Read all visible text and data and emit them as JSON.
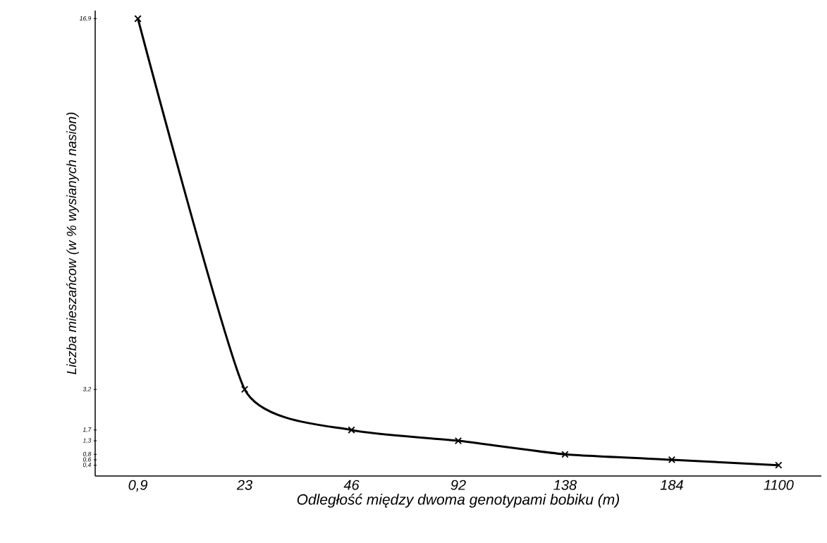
{
  "chart_data": {
    "type": "line",
    "xlabel": "Odległość między dwoma genotypami bobiku (m)",
    "ylabel": "Liczba mieszańcow (w % wysianych nasion)",
    "categories": [
      "0,9",
      "23",
      "46",
      "92",
      "138",
      "184",
      "1100"
    ],
    "values": [
      16.9,
      3.2,
      1.7,
      1.3,
      0.8,
      0.6,
      0.4
    ],
    "color": "#000000",
    "ylim": [
      0,
      17.2
    ],
    "yticks": [
      {
        "value": 16.9,
        "label": "16,9"
      },
      {
        "value": 3.2,
        "label": "3,2"
      },
      {
        "value": 1.7,
        "label": "1,7"
      },
      {
        "value": 1.3,
        "label": "1,3"
      },
      {
        "value": 0.8,
        "label": "0,8"
      },
      {
        "value": 0.6,
        "label": "0,6"
      },
      {
        "value": 0.4,
        "label": "0,4"
      }
    ],
    "marker": "cross",
    "line_style": "solid",
    "grid": false,
    "legend": false
  }
}
